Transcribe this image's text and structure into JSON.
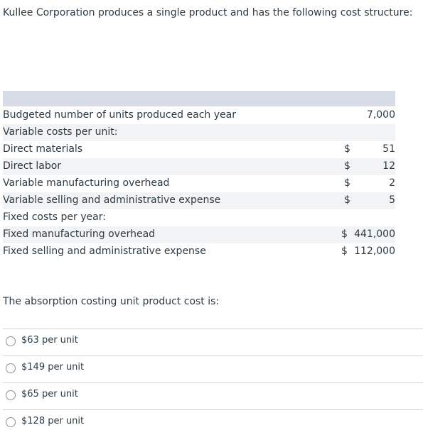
{
  "intro": "Kullee Corporation produces a single product and has the following cost structure:",
  "table": {
    "rows": [
      {
        "label": "Budgeted number of units produced each year",
        "amount": "7,000"
      },
      {
        "label": "Variable costs per unit:"
      },
      {
        "label": "Direct materials",
        "currency": "$",
        "amount": "51"
      },
      {
        "label": "Direct labor",
        "currency": "$",
        "amount": "12"
      },
      {
        "label": "Variable manufacturing overhead",
        "currency": "$",
        "amount": "2"
      },
      {
        "label": "Variable selling and administrative expense",
        "currency": "$",
        "amount": "5"
      },
      {
        "label": "Fixed costs per year:"
      },
      {
        "label": "Fixed manufacturing overhead",
        "currency": "$",
        "amount": "441,000"
      },
      {
        "label": "Fixed selling and administrative expense",
        "currency": "$",
        "amount": "112,000"
      }
    ]
  },
  "question": "The absorption costing unit product cost is:",
  "options": [
    "$63 per unit",
    "$149 per unit",
    "$65 per unit",
    "$128 per unit"
  ]
}
